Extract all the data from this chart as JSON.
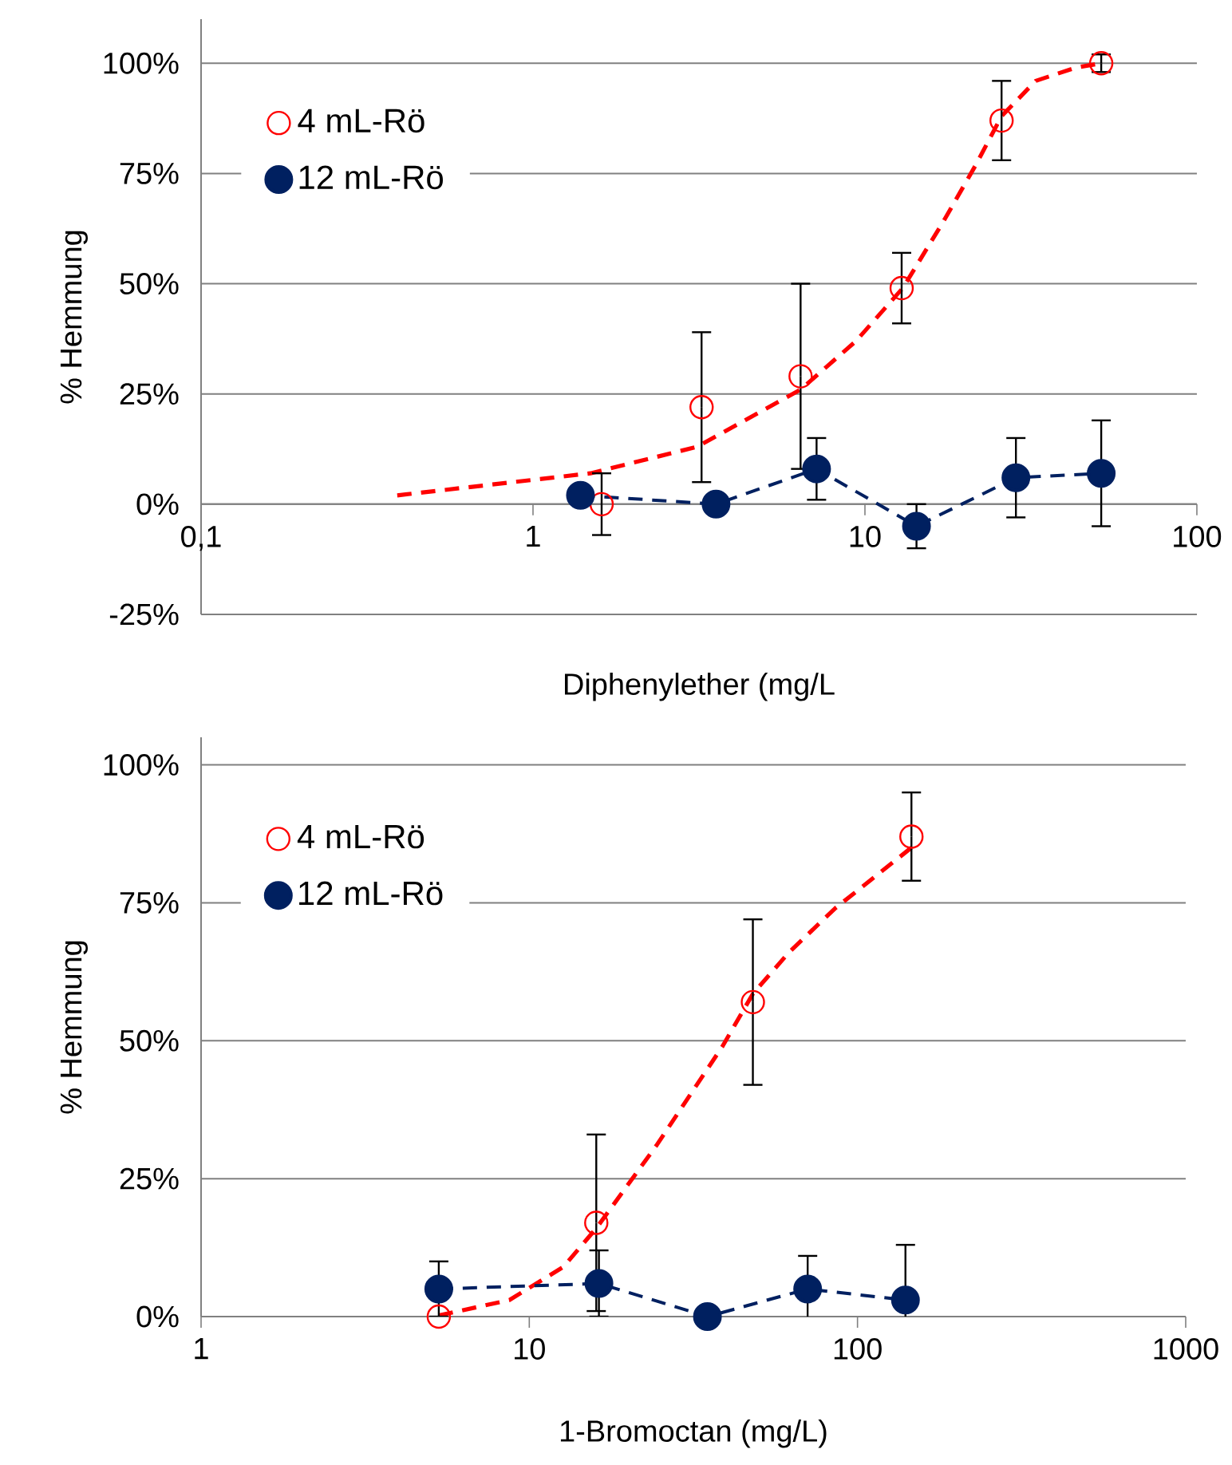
{
  "chart_data": [
    {
      "type": "scatter",
      "xlabel": "Diphenylether (mg/L",
      "ylabel": "% Hemmung",
      "log": "x",
      "grid": "y",
      "legend": "top left",
      "xlim": [
        0.1,
        100
      ],
      "xticks": [
        {
          "value": 0.1,
          "label": "0,1"
        },
        1,
        10,
        100
      ],
      "ylim": [
        -25,
        110
      ],
      "yticks": [
        {
          "value": -25,
          "label": "-25%"
        },
        {
          "value": 0,
          "label": "0%"
        },
        {
          "value": 25,
          "label": "25%"
        },
        {
          "value": 50,
          "label": "50%"
        },
        {
          "value": 75,
          "label": "75%"
        },
        {
          "value": 100,
          "label": "100%"
        }
      ],
      "series": [
        {
          "name": "4 mL-Rö",
          "marker": "circle",
          "color": "#ff0000",
          "x": [
            1.61,
            3.22,
            6.4,
            12.9,
            25.8,
            51.5
          ],
          "values": [
            0,
            22,
            29,
            49,
            87,
            100
          ],
          "errors": [
            7,
            17,
            21,
            8,
            9,
            2
          ]
        },
        {
          "name": "12 mL-Rö",
          "type": "line",
          "marker": "circle",
          "line_style": "dashed",
          "color": "#002060",
          "x": [
            1.39,
            3.56,
            7.15,
            14.3,
            28.5,
            51.5
          ],
          "values": [
            2,
            0,
            8,
            -5,
            6,
            7
          ],
          "errors": [
            null,
            null,
            7,
            5,
            9,
            12
          ]
        },
        {
          "type": "line",
          "line_style": "dashed",
          "color": "#ff0000",
          "x": [
            0.39,
            1.49,
            3.12,
            6.4,
            9.4,
            13,
            17.2,
            21.6,
            25.8,
            32.7,
            43.1,
            51.5
          ],
          "values": [
            2,
            7,
            13,
            26,
            37,
            49,
            64,
            77,
            88,
            96,
            99,
            100
          ]
        }
      ]
    },
    {
      "type": "scatter",
      "xlabel": "1-Bromoctan (mg/L)",
      "ylabel": "% Hemmung",
      "log": "x",
      "grid": "y",
      "legend": "top left",
      "xlim": [
        1,
        1000
      ],
      "xticks": [
        1,
        10,
        100,
        1000
      ],
      "ylim": [
        0,
        105
      ],
      "yticks": [
        {
          "value": 0,
          "label": "0%"
        },
        {
          "value": 25,
          "label": "25%"
        },
        {
          "value": 50,
          "label": "50%"
        },
        {
          "value": 75,
          "label": "75%"
        },
        {
          "value": 100,
          "label": "100%"
        }
      ],
      "series": [
        {
          "name": "4 mL-Rö",
          "marker": "circle",
          "color": "#ff0000",
          "x": [
            5.3,
            16,
            48,
            146
          ],
          "values": [
            0,
            17,
            57,
            87
          ],
          "errors": [
            null,
            16,
            15,
            8
          ]
        },
        {
          "name": "12 mL-Rö",
          "type": "line",
          "marker": "circle",
          "line_style": "dashed",
          "color": "#002060",
          "x": [
            5.3,
            16.3,
            34.9,
            70.5,
            140
          ],
          "values": [
            5,
            6,
            0,
            5,
            3
          ],
          "errors": [
            5,
            6,
            null,
            6,
            10
          ]
        },
        {
          "type": "line",
          "line_style": "dashed",
          "color": "#ff0000",
          "x": [
            5.3,
            8.7,
            12.7,
            16,
            24.4,
            38.8,
            48,
            61.8,
            85.5,
            146
          ],
          "values": [
            0.2,
            3,
            9,
            16,
            31,
            49,
            58.5,
            66,
            74,
            85
          ]
        }
      ]
    }
  ]
}
